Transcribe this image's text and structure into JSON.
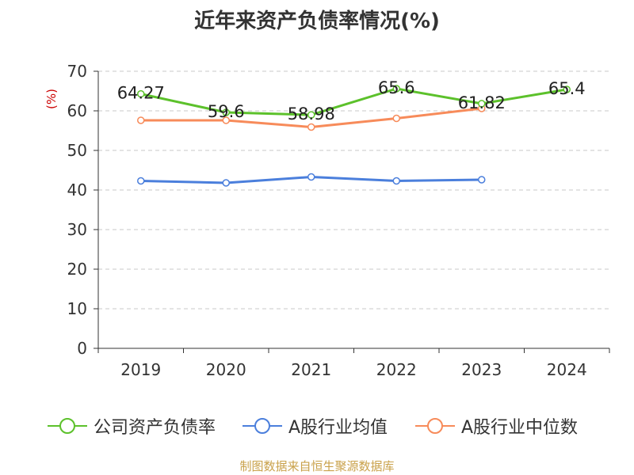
{
  "title": "近年来资产负债率情况(%)",
  "source": "制图数据来自恒生聚源数据库",
  "colors": {
    "company": "#5cc12b",
    "industry_avg": "#4b7fdc",
    "industry_median": "#f78b5a",
    "ylabel": "#cc0000",
    "source": "#c9a14a"
  },
  "chart_data": {
    "type": "line",
    "title": "近年来资产负债率情况(%)",
    "xlabel": "",
    "ylabel": "(%)",
    "categories": [
      "2019",
      "2020",
      "2021",
      "2022",
      "2023",
      "2024"
    ],
    "ylim": [
      0,
      70
    ],
    "yticks": [
      "0",
      "10",
      "20",
      "30",
      "40",
      "50",
      "60",
      "70"
    ],
    "grid": true,
    "legend_position": "bottom",
    "series": [
      {
        "name": "公司资产负债率",
        "values": [
          64.27,
          59.6,
          58.98,
          65.6,
          61.82,
          65.4
        ],
        "labels": [
          "64.27",
          "59.6",
          "58.98",
          "65.6",
          "61.82",
          "65.4"
        ]
      },
      {
        "name": "A股行业均值",
        "values": [
          42.3,
          41.8,
          43.3,
          42.3,
          42.6,
          null
        ]
      },
      {
        "name": "A股行业中位数",
        "values": [
          57.6,
          57.6,
          55.9,
          58.1,
          60.6,
          null
        ]
      }
    ]
  }
}
